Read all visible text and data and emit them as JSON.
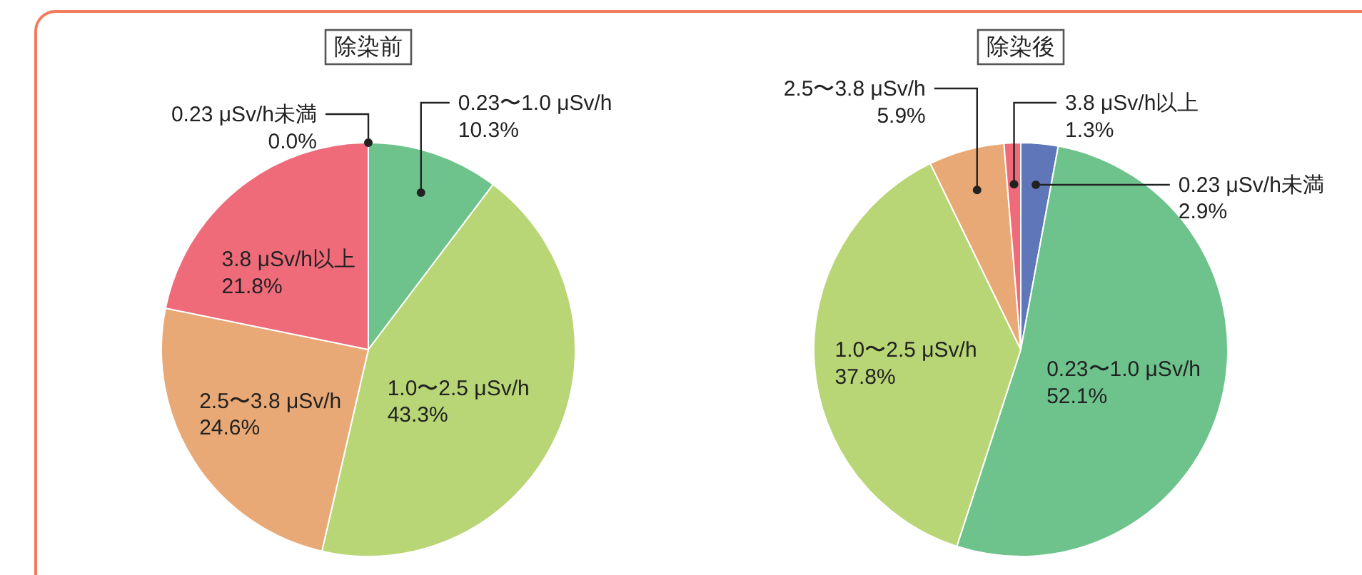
{
  "chart_data": [
    {
      "type": "pie",
      "title": "除染前",
      "categories": [
        "0.23 μSv/h未満",
        "0.23〜1.0 μSv/h",
        "1.0〜2.5 μSv/h",
        "2.5〜3.8 μSv/h",
        "3.8 μSv/h以上"
      ],
      "values": [
        0.0,
        10.3,
        43.3,
        24.6,
        21.8
      ],
      "colors": [
        "#5f77b9",
        "#6dc38b",
        "#b8d675",
        "#e9a976",
        "#ef6b7a"
      ],
      "value_labels": [
        "0.0%",
        "10.3%",
        "43.3%",
        "24.6%",
        "21.8%"
      ]
    },
    {
      "type": "pie",
      "title": "除染後",
      "categories": [
        "0.23 μSv/h未満",
        "0.23〜1.0 μSv/h",
        "1.0〜2.5 μSv/h",
        "2.5〜3.8 μSv/h",
        "3.8 μSv/h以上"
      ],
      "values": [
        2.9,
        52.1,
        37.8,
        5.9,
        1.3
      ],
      "colors": [
        "#5f77b9",
        "#6dc38b",
        "#b8d675",
        "#e9a976",
        "#ef6b7a"
      ],
      "value_labels": [
        "2.9%",
        "52.1%",
        "37.8%",
        "5.9%",
        "1.3%"
      ]
    }
  ]
}
